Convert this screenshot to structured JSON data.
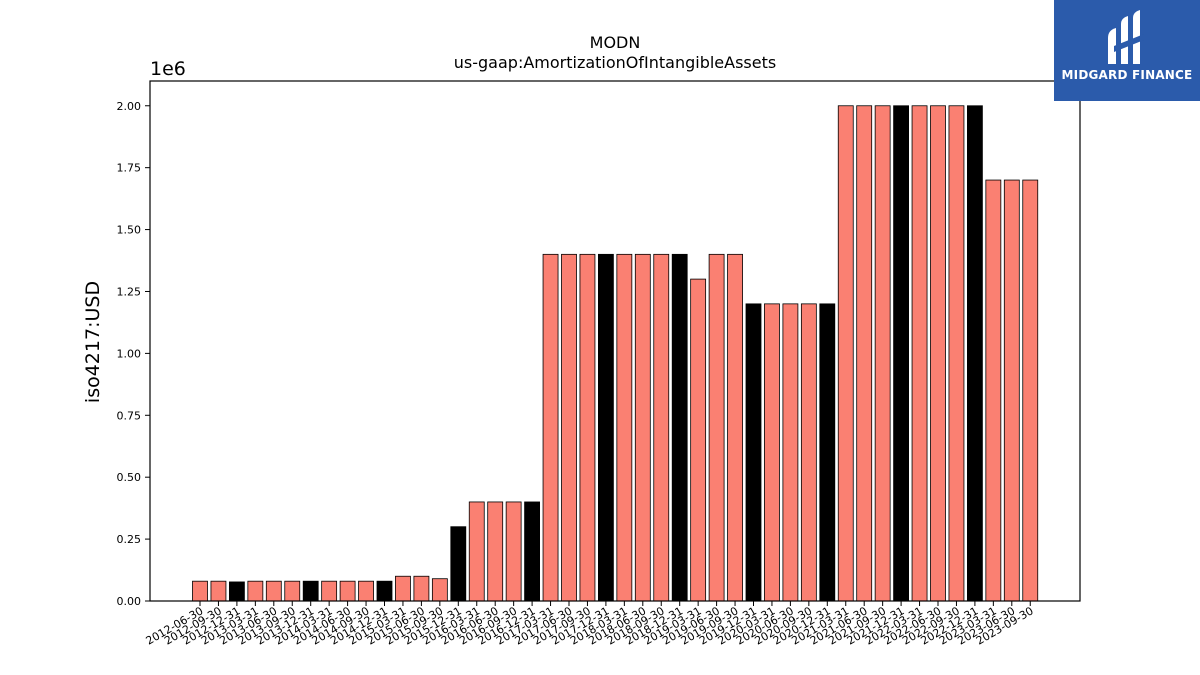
{
  "chart_data": {
    "type": "bar",
    "title": "MODN",
    "subtitle": "us-gaap:AmortizationOfIntangibleAssets",
    "ylabel": "iso4217:USD",
    "xlabel": "",
    "offset_label": "1e6",
    "ylim": [
      0,
      2100000
    ],
    "yticks": [
      0,
      250000,
      500000,
      750000,
      1000000,
      1250000,
      1500000,
      1750000,
      2000000
    ],
    "ytick_labels": [
      "0.00",
      "0.25",
      "0.50",
      "0.75",
      "1.00",
      "1.25",
      "1.50",
      "1.75",
      "2.00"
    ],
    "grid": false,
    "colors": {
      "quarter": "#fa8072",
      "annual": "#000000",
      "edge": "#000000"
    },
    "categories": [
      "2012-06-30",
      "2012-09-30",
      "2012-12-31",
      "2013-03-31",
      "2013-06-30",
      "2013-09-30",
      "2013-12-31",
      "2014-03-31",
      "2014-06-30",
      "2014-09-30",
      "2014-12-31",
      "2015-03-31",
      "2015-06-30",
      "2015-09-30",
      "2015-12-31",
      "2016-03-31",
      "2016-06-30",
      "2016-09-30",
      "2016-12-31",
      "2017-03-31",
      "2017-06-30",
      "2017-09-30",
      "2017-12-31",
      "2018-03-31",
      "2018-06-30",
      "2018-09-30",
      "2018-12-31",
      "2019-03-31",
      "2019-06-30",
      "2019-09-30",
      "2019-12-31",
      "2020-03-31",
      "2020-06-30",
      "2020-09-30",
      "2020-12-31",
      "2021-03-31",
      "2021-06-30",
      "2021-09-30",
      "2021-12-31",
      "2022-03-31",
      "2022-06-30",
      "2022-09-30",
      "2022-12-31",
      "2023-03-31",
      "2023-06-30",
      "2023-09-30"
    ],
    "values": [
      80000,
      80000,
      77000,
      80000,
      80000,
      80000,
      80000,
      80000,
      80000,
      80000,
      80000,
      100000,
      100000,
      90000,
      300000,
      400000,
      400000,
      400000,
      400000,
      1400000,
      1400000,
      1400000,
      1400000,
      1400000,
      1400000,
      1400000,
      1400000,
      1300000,
      1400000,
      1400000,
      1200000,
      1200000,
      1200000,
      1200000,
      1200000,
      2000000,
      2000000,
      2000000,
      2000000,
      2000000,
      2000000,
      2000000,
      2000000,
      1700000,
      1700000,
      1700000
    ],
    "highlight": [
      false,
      false,
      true,
      false,
      false,
      false,
      true,
      false,
      false,
      false,
      true,
      false,
      false,
      false,
      true,
      false,
      false,
      false,
      true,
      false,
      false,
      false,
      true,
      false,
      false,
      false,
      true,
      false,
      false,
      false,
      true,
      false,
      false,
      false,
      true,
      false,
      false,
      false,
      true,
      false,
      false,
      false,
      true,
      false,
      false,
      false
    ]
  },
  "logo": {
    "text": "MIDGARD FINANCE",
    "icon": "midgard-logo-icon"
  }
}
